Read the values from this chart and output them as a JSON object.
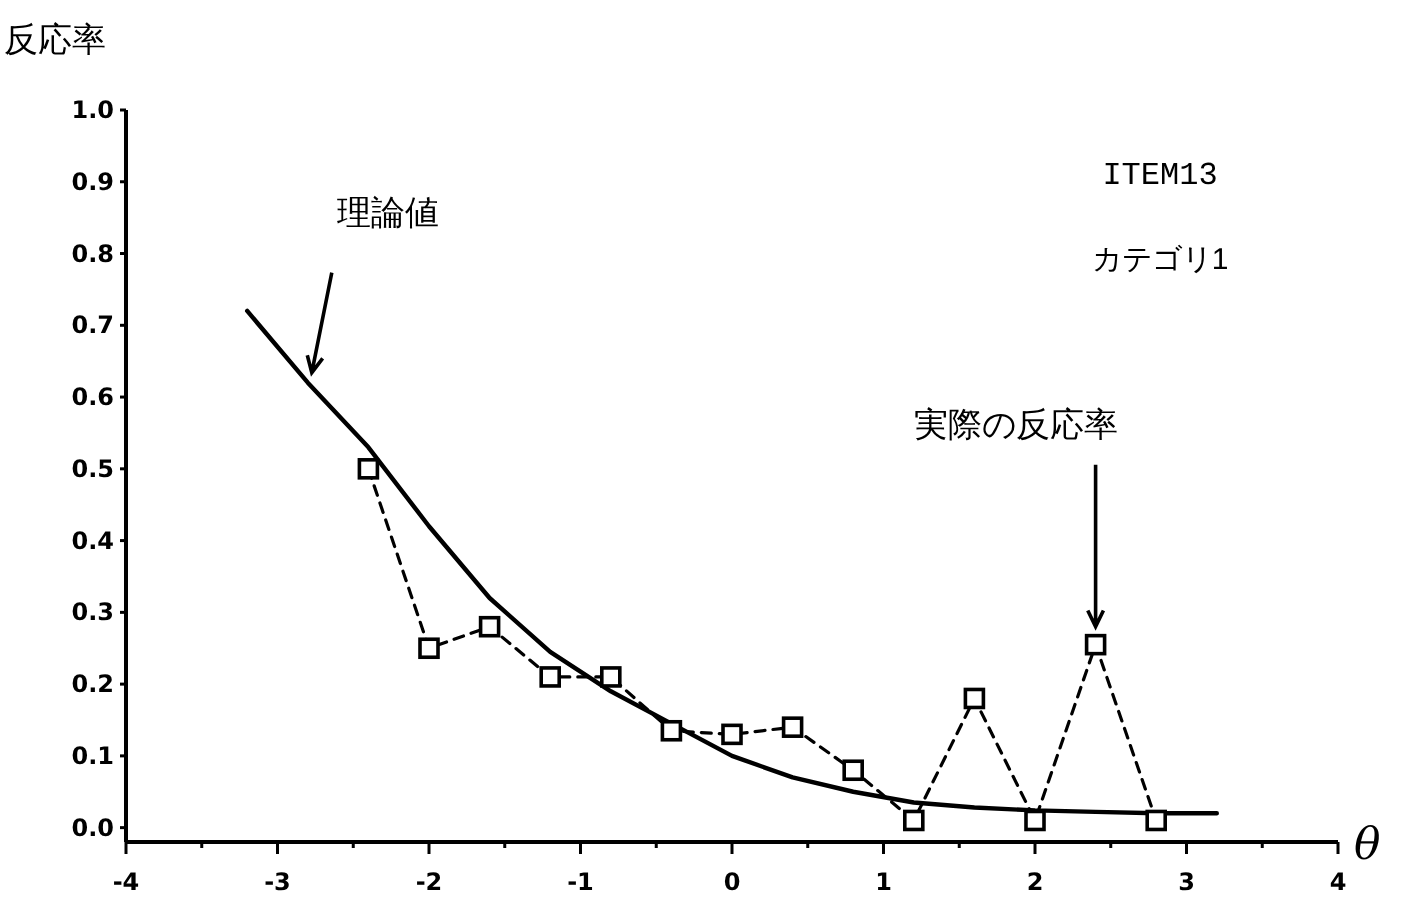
{
  "chart_data": {
    "type": "line",
    "title": "ITEM13",
    "subtitle": "カテゴリ1",
    "xlabel": "θ",
    "ylabel": "反応率",
    "xlim": [
      -4,
      4
    ],
    "ylim": [
      -0.02,
      1.0
    ],
    "xticks": [
      -4,
      {
        "value": -3.5,
        "label": null
      },
      -3,
      {
        "value": -2.5,
        "label": null
      },
      -2,
      {
        "value": -1.5,
        "label": null
      },
      -1,
      {
        "value": -0.5,
        "label": null
      },
      0,
      {
        "value": 0.5,
        "label": null
      },
      1,
      {
        "value": 1.5,
        "label": null
      },
      2,
      {
        "value": 2.5,
        "label": null
      },
      3,
      {
        "value": 3.5,
        "label": null
      },
      4
    ],
    "yticks": [
      {
        "value": 0,
        "label": "0.0"
      },
      {
        "value": 0.1,
        "label": "0.1"
      },
      {
        "value": 0.2,
        "label": "0.2"
      },
      {
        "value": 0.3,
        "label": "0.3"
      },
      {
        "value": 0.4,
        "label": "0.4"
      },
      {
        "value": 0.5,
        "label": "0.5"
      },
      {
        "value": 0.6,
        "label": "0.6"
      },
      {
        "value": 0.7,
        "label": "0.7"
      },
      {
        "value": 0.8,
        "label": "0.8"
      },
      {
        "value": 0.9,
        "label": "0.9"
      },
      {
        "value": 1.0,
        "label": "1.0"
      }
    ],
    "grid": false,
    "series": [
      {
        "color": "#000000",
        "line_style": "solid",
        "marker": "none",
        "x": [
          -3.2,
          -2.8,
          -2.4,
          -2.0,
          -1.6,
          -1.2,
          -0.8,
          -0.4,
          0,
          0.4,
          0.8,
          1.2,
          1.6,
          2.0,
          2.4,
          2.8,
          3.2
        ],
        "values": [
          0.72,
          0.62,
          0.53,
          0.42,
          0.32,
          0.245,
          0.19,
          0.145,
          0.1,
          0.07,
          0.05,
          0.035,
          0.028,
          0.024,
          0.022,
          0.02,
          0.02
        ]
      },
      {
        "color": "#000000",
        "line_style": "dashed",
        "marker": "square",
        "x": [
          -2.4,
          -2.0,
          -1.6,
          -1.2,
          -0.8,
          -0.4,
          0,
          0.4,
          0.8,
          1.2,
          1.6,
          2.0,
          2.4,
          2.8
        ],
        "values": [
          0.5,
          0.25,
          0.28,
          0.21,
          0.21,
          0.135,
          0.13,
          0.14,
          0.08,
          0.01,
          0.18,
          0.01,
          0.255,
          0.01
        ]
      }
    ],
    "annotations": [
      {
        "text": "理論値",
        "x": -2.8,
        "y": 0.62
      },
      {
        "text": "実際の反応率",
        "x": 2.4,
        "y": 0.255
      }
    ]
  }
}
